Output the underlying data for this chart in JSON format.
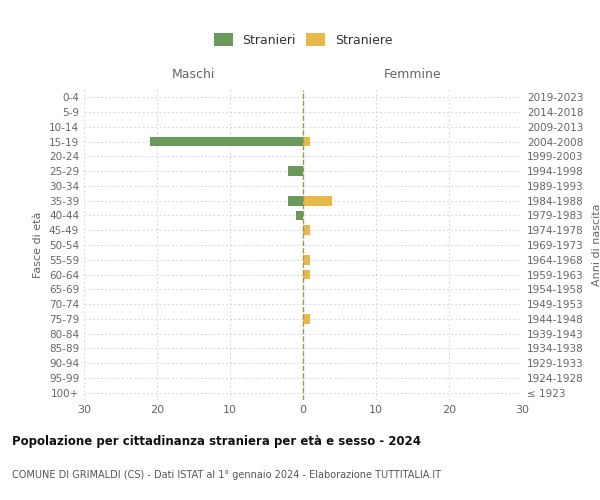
{
  "age_groups": [
    "100+",
    "95-99",
    "90-94",
    "85-89",
    "80-84",
    "75-79",
    "70-74",
    "65-69",
    "60-64",
    "55-59",
    "50-54",
    "45-49",
    "40-44",
    "35-39",
    "30-34",
    "25-29",
    "20-24",
    "15-19",
    "10-14",
    "5-9",
    "0-4"
  ],
  "birth_years": [
    "≤ 1923",
    "1924-1928",
    "1929-1933",
    "1934-1938",
    "1939-1943",
    "1944-1948",
    "1949-1953",
    "1954-1958",
    "1959-1963",
    "1964-1968",
    "1969-1973",
    "1974-1978",
    "1979-1983",
    "1984-1988",
    "1989-1993",
    "1994-1998",
    "1999-2003",
    "2004-2008",
    "2009-2013",
    "2014-2018",
    "2019-2023"
  ],
  "maschi_stranieri": [
    0,
    0,
    0,
    0,
    0,
    0,
    0,
    0,
    0,
    0,
    0,
    0,
    1,
    2,
    0,
    2,
    0,
    21,
    0,
    0,
    0
  ],
  "femmine_straniere": [
    0,
    0,
    0,
    0,
    0,
    1,
    0,
    0,
    1,
    1,
    0,
    1,
    0,
    4,
    0,
    0,
    0,
    1,
    0,
    0,
    0
  ],
  "color_maschi": "#6a9a5b",
  "color_femmine": "#e8b84b",
  "xlim": 30,
  "title": "Popolazione per cittadinanza straniera per età e sesso - 2024",
  "subtitle": "COMUNE DI GRIMALDI (CS) - Dati ISTAT al 1° gennaio 2024 - Elaborazione TUTTITALIA.IT",
  "legend_maschi": "Stranieri",
  "legend_femmine": "Straniere",
  "label_maschi": "Maschi",
  "label_femmine": "Femmine",
  "ylabel_left": "Fasce di età",
  "ylabel_right": "Anni di nascita",
  "bg_color": "#ffffff",
  "grid_color": "#cccccc",
  "bar_height": 0.65,
  "center_line_color": "#999955",
  "top_label_color": "#666666",
  "tick_label_color": "#666666"
}
